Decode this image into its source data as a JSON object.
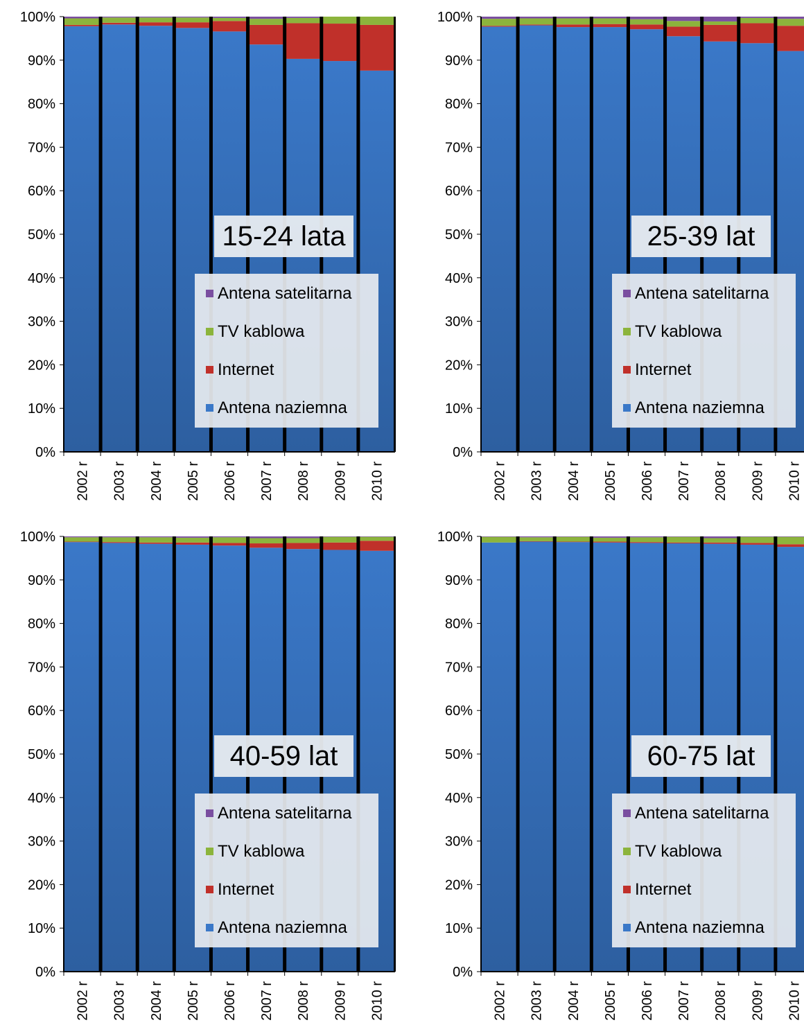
{
  "colors": {
    "satellite": "#7a4ea0",
    "cable": "#8cb43c",
    "internet": "#c0302a",
    "terrestrial": "#3a78c8",
    "terrestrial_dark": "#2d5fa0",
    "separator": "#000000"
  },
  "chart_data": [
    {
      "type": "bar",
      "stacked": true,
      "normalized": true,
      "label": "15-24 lata",
      "categories": [
        "2002 r",
        "2003 r",
        "2004 r",
        "2005 r",
        "2006 r",
        "2007 r",
        "2008 r",
        "2009 r",
        "2010 r"
      ],
      "yticks": [
        "0%",
        "10%",
        "20%",
        "30%",
        "40%",
        "50%",
        "60%",
        "70%",
        "80%",
        "90%",
        "100%"
      ],
      "ylim": [
        0,
        100
      ],
      "legend": [
        "Antena satelitarna",
        "TV kablowa",
        "Internet",
        "Antena naziemna"
      ],
      "series": [
        {
          "name": "Antena naziemna",
          "values": [
            97.8,
            98.2,
            97.9,
            97.4,
            96.6,
            93.6,
            90.3,
            89.8,
            87.6
          ]
        },
        {
          "name": "Internet",
          "values": [
            0.3,
            0.4,
            0.8,
            1.3,
            2.4,
            4.5,
            8.2,
            8.6,
            10.5
          ]
        },
        {
          "name": "TV kablowa",
          "values": [
            1.5,
            1.2,
            1.1,
            1.1,
            0.7,
            1.4,
            1.2,
            1.6,
            1.9
          ]
        },
        {
          "name": "Antena satelitarna",
          "values": [
            0.4,
            0.2,
            0.2,
            0.2,
            0.3,
            0.5,
            0.3,
            0.0,
            0.0
          ]
        }
      ]
    },
    {
      "type": "bar",
      "stacked": true,
      "normalized": true,
      "label": "25-39 lat",
      "categories": [
        "2002 r",
        "2003 r",
        "2004 r",
        "2005 r",
        "2006 r",
        "2007 r",
        "2008 r",
        "2009 r",
        "2010 r"
      ],
      "yticks": [
        "0%",
        "10%",
        "20%",
        "30%",
        "40%",
        "50%",
        "60%",
        "70%",
        "80%",
        "90%",
        "100%"
      ],
      "ylim": [
        0,
        100
      ],
      "legend": [
        "Antena satelitarna",
        "TV kablowa",
        "Internet",
        "Antena naziemna"
      ],
      "series": [
        {
          "name": "Antena naziemna",
          "values": [
            97.7,
            98.0,
            97.6,
            97.6,
            97.1,
            95.5,
            94.3,
            93.9,
            92.1
          ]
        },
        {
          "name": "Internet",
          "values": [
            0.2,
            0.2,
            0.6,
            0.7,
            1.1,
            2.2,
            3.8,
            4.6,
            5.8
          ]
        },
        {
          "name": "TV kablowa",
          "values": [
            1.6,
            1.4,
            1.4,
            1.3,
            1.2,
            1.3,
            0.8,
            1.2,
            1.6
          ]
        },
        {
          "name": "Antena satelitarna",
          "values": [
            0.5,
            0.4,
            0.4,
            0.4,
            0.6,
            1.0,
            1.1,
            0.3,
            0.5
          ]
        }
      ]
    },
    {
      "type": "bar",
      "stacked": true,
      "normalized": true,
      "label": "40-59 lat",
      "categories": [
        "2002 r",
        "2003 r",
        "2004 r",
        "2005 r",
        "2006 r",
        "2007 r",
        "2008 r",
        "2009 r",
        "2010 r"
      ],
      "yticks": [
        "0%",
        "10%",
        "20%",
        "30%",
        "40%",
        "50%",
        "60%",
        "70%",
        "80%",
        "90%",
        "100%"
      ],
      "ylim": [
        0,
        100
      ],
      "legend": [
        "Antena satelitarna",
        "TV kablowa",
        "Internet",
        "Antena naziemna"
      ],
      "series": [
        {
          "name": "Antena naziemna",
          "values": [
            98.7,
            98.5,
            98.3,
            98.1,
            97.9,
            97.4,
            97.1,
            96.9,
            96.7
          ]
        },
        {
          "name": "Internet",
          "values": [
            0.1,
            0.2,
            0.3,
            0.5,
            0.6,
            1.0,
            1.4,
            1.7,
            2.3
          ]
        },
        {
          "name": "TV kablowa",
          "values": [
            1.0,
            1.1,
            1.2,
            1.1,
            1.3,
            1.2,
            1.1,
            1.3,
            0.9
          ]
        },
        {
          "name": "Antena satelitarna",
          "values": [
            0.2,
            0.2,
            0.2,
            0.3,
            0.2,
            0.4,
            0.4,
            0.1,
            0.1
          ]
        }
      ]
    },
    {
      "type": "bar",
      "stacked": true,
      "normalized": true,
      "label": "60-75 lat",
      "categories": [
        "2002 r",
        "2003 r",
        "2004 r",
        "2005 r",
        "2006 r",
        "2007 r",
        "2008 r",
        "2009 r",
        "2010 r"
      ],
      "yticks": [
        "0%",
        "10%",
        "20%",
        "30%",
        "40%",
        "50%",
        "60%",
        "70%",
        "80%",
        "90%",
        "100%"
      ],
      "ylim": [
        0,
        100
      ],
      "legend": [
        "Antena satelitarna",
        "TV kablowa",
        "Internet",
        "Antena naziemna"
      ],
      "series": [
        {
          "name": "Antena naziemna",
          "values": [
            98.6,
            98.8,
            98.7,
            98.6,
            98.5,
            98.4,
            98.3,
            98.1,
            97.6
          ]
        },
        {
          "name": "Internet",
          "values": [
            0.0,
            0.1,
            0.1,
            0.2,
            0.2,
            0.2,
            0.3,
            0.4,
            0.6
          ]
        },
        {
          "name": "TV kablowa",
          "values": [
            1.3,
            0.9,
            1.1,
            0.9,
            1.1,
            1.3,
            1.0,
            1.4,
            1.7
          ]
        },
        {
          "name": "Antena satelitarna",
          "values": [
            0.1,
            0.2,
            0.1,
            0.3,
            0.2,
            0.1,
            0.4,
            0.1,
            0.1
          ]
        }
      ]
    }
  ]
}
